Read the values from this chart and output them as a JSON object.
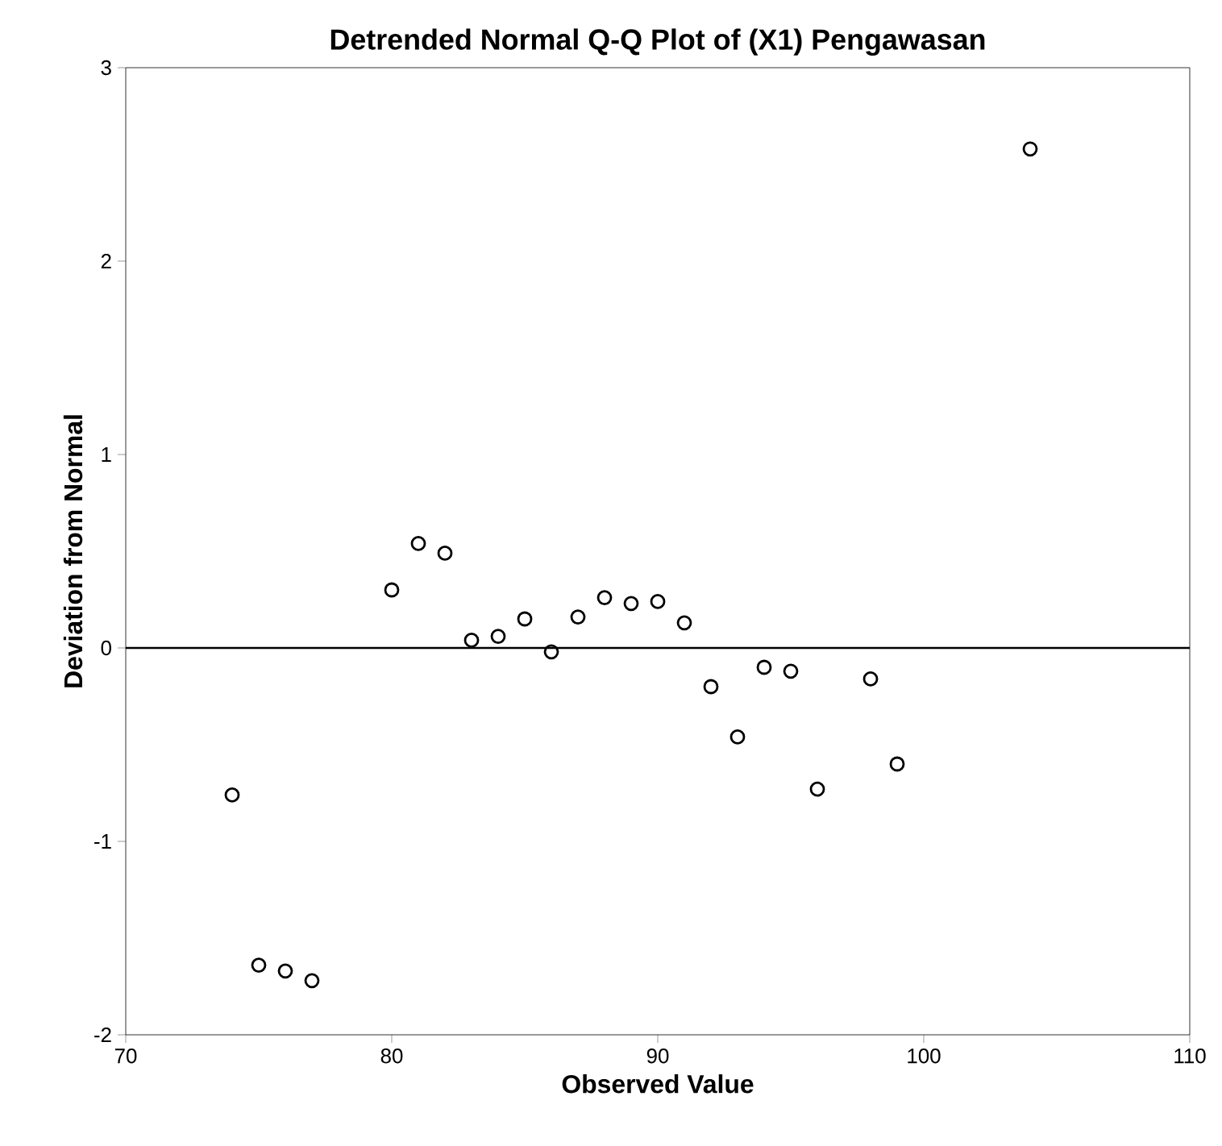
{
  "chart_data": {
    "type": "scatter",
    "title": "Detrended Normal Q-Q Plot of (X1) Pengawasan",
    "xlabel": "Observed Value",
    "ylabel": "Deviation from Normal",
    "x": [
      74,
      75,
      76,
      77,
      80,
      81,
      82,
      83,
      84,
      85,
      86,
      87,
      88,
      89,
      90,
      91,
      92,
      93,
      94,
      95,
      96,
      98,
      99,
      104
    ],
    "values": [
      -0.76,
      -1.64,
      -1.67,
      -1.72,
      0.3,
      0.54,
      0.49,
      0.04,
      0.06,
      0.15,
      -0.02,
      0.16,
      0.26,
      0.23,
      0.24,
      0.13,
      -0.2,
      -0.46,
      -0.1,
      -0.12,
      -0.73,
      -0.16,
      -0.6,
      2.58
    ],
    "color": "#000000",
    "marker": "circle",
    "grid": false,
    "xlim": [
      70,
      110
    ],
    "ylim": [
      -2,
      3
    ],
    "xticks": [
      70,
      80,
      90,
      100,
      110
    ],
    "yticks": [
      -2,
      -1,
      0,
      1,
      2,
      3
    ],
    "ref_lines": [
      {
        "axis": "y",
        "value": 0,
        "color": "#000000"
      }
    ]
  }
}
